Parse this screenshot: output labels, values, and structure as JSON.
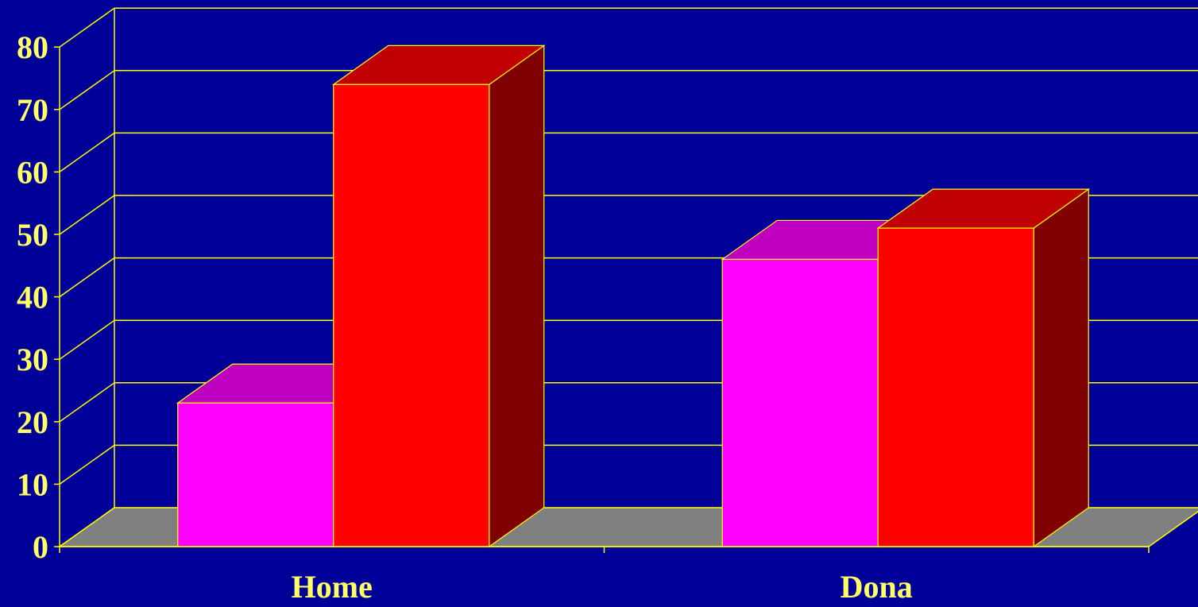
{
  "chart_data": {
    "type": "bar",
    "categories": [
      "Home",
      "Dona"
    ],
    "series": [
      {
        "values": [
          23,
          46
        ]
      },
      {
        "values": [
          74,
          51
        ]
      }
    ],
    "yticks": [
      "0",
      "10",
      "20",
      "30",
      "40",
      "50",
      "60",
      "70",
      "80"
    ],
    "ylim": [
      0,
      80
    ],
    "grid": true,
    "legend": "none",
    "title": "",
    "xlabel": "",
    "ylabel": ""
  },
  "colors": {
    "background": "#000099",
    "text": "#ffff66",
    "gridline": "#ffff00",
    "floor": "#808080",
    "series_front": [
      "#ff00ff",
      "#ff0000"
    ],
    "series_top": [
      "#c000c0",
      "#c00000"
    ],
    "series_side": [
      "#800080",
      "#800000"
    ]
  }
}
